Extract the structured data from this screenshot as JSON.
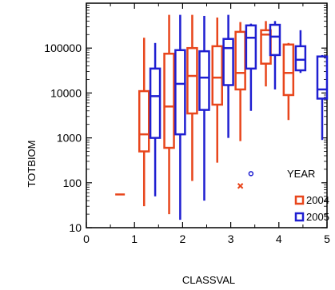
{
  "chart_data": {
    "type": "box",
    "xlabel": "CLASSVAL",
    "ylabel": "TOTBIOM",
    "x_scale": "linear",
    "y_scale": "log",
    "xlim": [
      0,
      5
    ],
    "ylim": [
      10,
      1000000
    ],
    "x_ticks": [
      "0",
      "1",
      "2",
      "3",
      "4",
      "5"
    ],
    "y_ticks": [
      "10",
      "100",
      "1000",
      "10000",
      "100000"
    ],
    "grid": false,
    "legend": {
      "title": "YEAR",
      "position": "right",
      "entries": [
        "2004",
        "2005"
      ]
    },
    "series": [
      {
        "name": "2004",
        "color": "#e8461c",
        "boxes": [
          {
            "x": 0.7,
            "single_value": 55
          },
          {
            "x": 1.2,
            "whisker_low": 30,
            "q1": 500,
            "median": 1200,
            "q3": 11000,
            "whisker_high": 170000
          },
          {
            "x": 1.72,
            "whisker_low": 20,
            "q1": 600,
            "median": 5000,
            "q3": 75000,
            "whisker_high": 550000
          },
          {
            "x": 2.2,
            "whisker_low": 110,
            "q1": 3500,
            "median": 24000,
            "q3": 100000,
            "whisker_high": 550000
          },
          {
            "x": 2.72,
            "whisker_low": 280,
            "q1": 5500,
            "median": 22000,
            "q3": 110000,
            "whisker_high": 480000
          },
          {
            "x": 3.2,
            "outlier_x": 85,
            "q1": 12000,
            "median": 28000,
            "q3": 230000,
            "whisker_high": 380000,
            "whisker_low": 850
          },
          {
            "x": 3.73,
            "whisker_low": 14000,
            "q1": 45000,
            "median": 200000,
            "q3": 250000,
            "whisker_high": 400000
          },
          {
            "x": 4.2,
            "whisker_low": 2500,
            "q1": 9000,
            "median": 28000,
            "q3": 120000,
            "whisker_high": 130000
          }
        ]
      },
      {
        "name": "2005",
        "color": "#1f1fd1",
        "boxes": [
          {
            "x": 1.43,
            "whisker_low": 50,
            "q1": 1000,
            "median": 8500,
            "q3": 35000,
            "whisker_high": 130000
          },
          {
            "x": 1.95,
            "whisker_low": 15,
            "q1": 1200,
            "median": 16000,
            "q3": 90000,
            "whisker_high": 550000
          },
          {
            "x": 2.45,
            "whisker_low": 40,
            "q1": 4200,
            "median": 22000,
            "q3": 85000,
            "whisker_high": 520000
          },
          {
            "x": 2.95,
            "whisker_low": 1000,
            "q1": 15000,
            "median": 100000,
            "q3": 160000,
            "whisker_high": 550000
          },
          {
            "x": 3.42,
            "outlier_o": 160,
            "q1": 35000,
            "median": 170000,
            "q3": 320000,
            "whisker_high": 350000,
            "whisker_low": 4000
          },
          {
            "x": 3.92,
            "whisker_low": 12000,
            "q1": 70000,
            "median": 180000,
            "q3": 330000,
            "whisker_high": 400000
          },
          {
            "x": 4.45,
            "whisker_low": 28000,
            "q1": 32000,
            "median": 55000,
            "q3": 110000,
            "whisker_high": 250000
          },
          {
            "x": 4.9,
            "whisker_low": 900,
            "q1": 7500,
            "median": 12000,
            "q3": 65000,
            "whisker_high": 70000
          }
        ]
      }
    ]
  }
}
